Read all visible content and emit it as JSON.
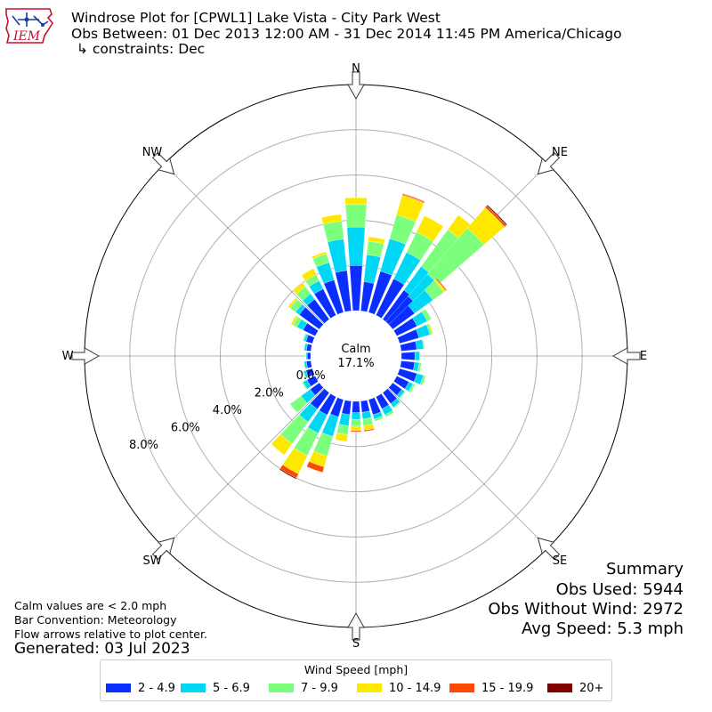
{
  "header": {
    "logo_text": "IEM",
    "title": "Windrose Plot for [CPWL1] Lake Vista - City Park West",
    "obs_range": "Obs Between: 01 Dec 2013 12:00 AM - 31 Dec 2014 11:45 PM America/Chicago",
    "constraints": "↳ constraints: Dec"
  },
  "compass": {
    "N": "N",
    "NE": "NE",
    "E": "E",
    "SE": "SE",
    "S": "S",
    "SW": "SW",
    "W": "W",
    "NW": "NW"
  },
  "center": {
    "calm_label": "Calm",
    "calm_value": "17.1%"
  },
  "footer": {
    "calm_note": "Calm values are < 2.0 mph",
    "bar_convention": "Bar Convention: Meteorology",
    "flow_note": "Flow arrows relative to plot center.",
    "generated": "Generated: 03 Jul 2023"
  },
  "summary": {
    "title": "Summary",
    "obs_used": "Obs Used: 5944",
    "obs_without_wind": "Obs Without Wind: 2972",
    "avg_speed": "Avg Speed: 5.3 mph"
  },
  "legend": {
    "title": "Wind Speed [mph]",
    "items": [
      "2 - 4.9",
      "5 - 6.9",
      "7 - 9.9",
      "10 - 14.9",
      "15 - 19.9",
      "20+"
    ]
  },
  "colors": {
    "speed_bins": [
      "#0a2eff",
      "#00d7f5",
      "#7cff7c",
      "#ffe800",
      "#ff4800",
      "#800000"
    ],
    "grid": "#b0b0b0",
    "arrow_fill": "#ffffff",
    "logo_red": "#c8102e",
    "logo_blue": "#1a3caa"
  },
  "chart_data": {
    "type": "windrose",
    "r_ticks": [
      0.0,
      2.0,
      4.0,
      6.0,
      8.0
    ],
    "r_tick_labels": [
      "0.0%",
      "2.0%",
      "4.0%",
      "6.0%",
      "8.0%"
    ],
    "r_max": 10.0,
    "calm_percent": 17.1,
    "bins": [
      "2 - 4.9",
      "5 - 6.9",
      "7 - 9.9",
      "10 - 14.9",
      "15 - 19.9",
      "20+"
    ],
    "sectors": [
      {
        "dir": 0,
        "values": [
          2.0,
          1.7,
          1.0,
          0.3,
          0.0,
          0.0
        ]
      },
      {
        "dir": 10,
        "values": [
          1.3,
          1.2,
          0.6,
          0.2,
          0.0,
          0.0
        ]
      },
      {
        "dir": 20,
        "values": [
          1.9,
          1.5,
          1.1,
          0.9,
          0.05,
          0.02
        ]
      },
      {
        "dir": 30,
        "values": [
          1.8,
          1.3,
          1.0,
          0.8,
          0.0,
          0.0
        ]
      },
      {
        "dir": 40,
        "values": [
          1.6,
          1.3,
          2.0,
          0.8,
          0.0,
          0.0
        ]
      },
      {
        "dir": 45,
        "values": [
          1.5,
          1.3,
          2.7,
          1.2,
          0.1,
          0.05
        ]
      },
      {
        "dir": 50,
        "values": [
          1.2,
          1.0,
          0.6,
          0.1,
          0.05,
          0.0
        ]
      },
      {
        "dir": 60,
        "values": [
          1.0,
          0.5,
          0.2,
          0.0,
          0.0,
          0.0
        ]
      },
      {
        "dir": 70,
        "values": [
          0.9,
          0.5,
          0.1,
          0.05,
          0.0,
          0.0
        ]
      },
      {
        "dir": 80,
        "values": [
          0.7,
          0.3,
          0.05,
          0.0,
          0.0,
          0.0
        ]
      },
      {
        "dir": 90,
        "values": [
          0.6,
          0.2,
          0.05,
          0.0,
          0.0,
          0.0
        ]
      },
      {
        "dir": 100,
        "values": [
          0.6,
          0.2,
          0.1,
          0.0,
          0.0,
          0.0
        ]
      },
      {
        "dir": 110,
        "values": [
          0.8,
          0.3,
          0.1,
          0.0,
          0.0,
          0.0
        ]
      },
      {
        "dir": 120,
        "values": [
          0.6,
          0.2,
          0.1,
          0.0,
          0.0,
          0.0
        ]
      },
      {
        "dir": 130,
        "values": [
          0.5,
          0.15,
          0.05,
          0.0,
          0.0,
          0.0
        ]
      },
      {
        "dir": 140,
        "values": [
          0.6,
          0.2,
          0.05,
          0.0,
          0.0,
          0.0
        ]
      },
      {
        "dir": 150,
        "values": [
          0.6,
          0.3,
          0.1,
          0.0,
          0.0,
          0.0
        ]
      },
      {
        "dir": 160,
        "values": [
          0.7,
          0.2,
          0.1,
          0.0,
          0.0,
          0.0
        ]
      },
      {
        "dir": 170,
        "values": [
          0.5,
          0.3,
          0.3,
          0.2,
          0.05,
          0.0
        ]
      },
      {
        "dir": 180,
        "values": [
          0.5,
          0.3,
          0.3,
          0.2,
          0.05,
          0.0
        ]
      },
      {
        "dir": 190,
        "values": [
          0.6,
          0.5,
          0.4,
          0.3,
          0.0,
          0.0
        ]
      },
      {
        "dir": 200,
        "values": [
          0.8,
          0.9,
          0.9,
          0.5,
          0.25,
          0.0
        ]
      },
      {
        "dir": 210,
        "values": [
          0.9,
          0.9,
          1.1,
          0.9,
          0.2,
          0.05
        ]
      },
      {
        "dir": 220,
        "values": [
          0.9,
          0.7,
          1.2,
          0.6,
          0.0,
          0.0
        ]
      },
      {
        "dir": 230,
        "values": [
          0.5,
          0.5,
          0.6,
          0.0,
          0.0,
          0.0
        ]
      },
      {
        "dir": 240,
        "values": [
          0.4,
          0.2,
          0.05,
          0.0,
          0.0,
          0.0
        ]
      },
      {
        "dir": 250,
        "values": [
          0.3,
          0.1,
          0.05,
          0.0,
          0.0,
          0.0
        ]
      },
      {
        "dir": 260,
        "values": [
          0.2,
          0.1,
          0.0,
          0.0,
          0.0,
          0.0
        ]
      },
      {
        "dir": 270,
        "values": [
          0.15,
          0.05,
          0.0,
          0.0,
          0.0,
          0.0
        ]
      },
      {
        "dir": 280,
        "values": [
          0.2,
          0.1,
          0.0,
          0.0,
          0.0,
          0.0
        ]
      },
      {
        "dir": 290,
        "values": [
          0.3,
          0.1,
          0.05,
          0.0,
          0.0,
          0.0
        ]
      },
      {
        "dir": 300,
        "values": [
          0.6,
          0.3,
          0.2,
          0.1,
          0.0,
          0.0
        ]
      },
      {
        "dir": 310,
        "values": [
          1.1,
          0.2,
          0.3,
          0.1,
          0.0,
          0.0
        ]
      },
      {
        "dir": 320,
        "values": [
          1.1,
          0.3,
          0.4,
          0.2,
          0.0,
          0.0
        ]
      },
      {
        "dir": 330,
        "values": [
          1.3,
          0.4,
          0.3,
          0.3,
          0.0,
          0.0
        ]
      },
      {
        "dir": 340,
        "values": [
          1.5,
          0.8,
          0.4,
          0.1,
          0.0,
          0.0
        ]
      },
      {
        "dir": 350,
        "values": [
          1.8,
          1.4,
          0.8,
          0.3,
          0.0,
          0.0
        ]
      }
    ]
  }
}
